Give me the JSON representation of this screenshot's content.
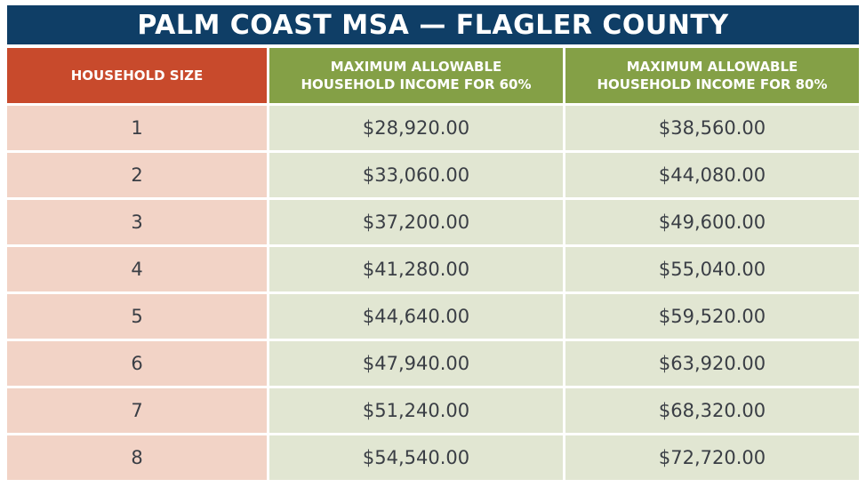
{
  "title": "PALM COAST MSA — FLAGLER COUNTY",
  "headers": [
    "HOUSEHOLD SIZE",
    "MAXIMUM ALLOWABLE\nHOUSEHOLD INCOME FOR 60%",
    "MAXIMUM ALLOWABLE\nHOUSEHOLD INCOME FOR 80%"
  ],
  "rows": [
    [
      "1",
      "$28,920.00",
      "$38,560.00"
    ],
    [
      "2",
      "$33,060.00",
      "$44,080.00"
    ],
    [
      "3",
      "$37,200.00",
      "$49,600.00"
    ],
    [
      "4",
      "$41,280.00",
      "$55,040.00"
    ],
    [
      "5",
      "$44,640.00",
      "$59,520.00"
    ],
    [
      "6",
      "$47,940.00",
      "$63,920.00"
    ],
    [
      "7",
      "$51,240.00",
      "$68,320.00"
    ],
    [
      "8",
      "$54,540.00",
      "$72,720.00"
    ]
  ],
  "colors": {
    "title_bg": "#0f3e66",
    "header_size_bg": "#c84a2c",
    "header_income_bg": "#84a046",
    "size_cell_bg": "#f2d3c6",
    "income_cell_bg": "#e1e6d2",
    "body_text": "#3a3e45"
  }
}
